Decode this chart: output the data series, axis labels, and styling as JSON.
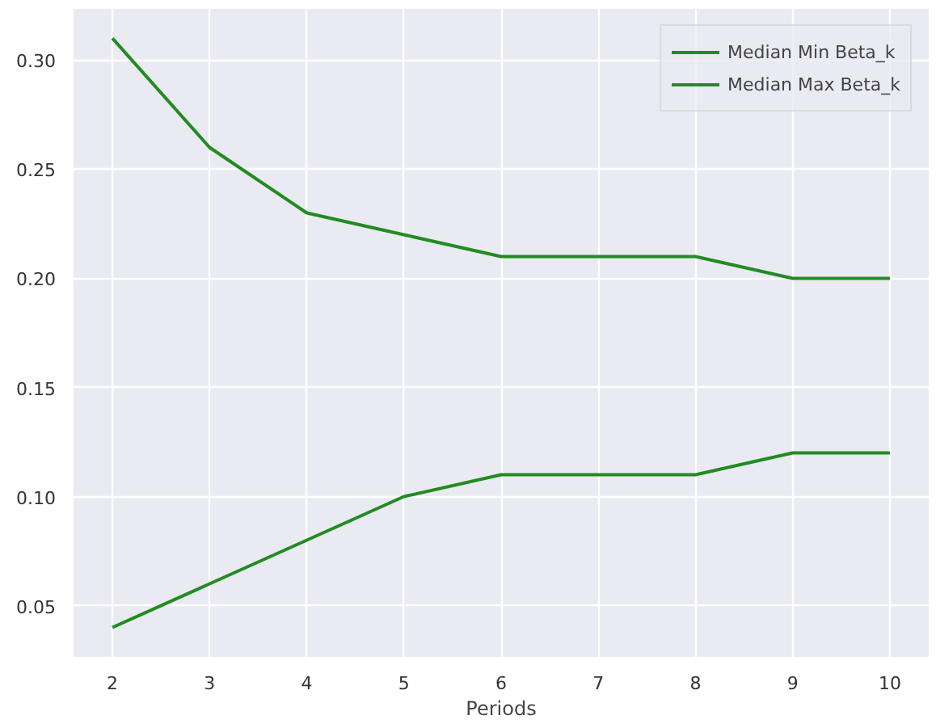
{
  "chart_data": {
    "type": "line",
    "xlabel": "Periods",
    "x": [
      2,
      3,
      4,
      5,
      6,
      7,
      8,
      9,
      10
    ],
    "series": [
      {
        "name": "Median Min Beta_k",
        "color": "#228b22",
        "values": [
          0.04,
          0.06,
          0.08,
          0.1,
          0.11,
          0.11,
          0.11,
          0.12,
          0.12
        ]
      },
      {
        "name": "Median Max Beta_k",
        "color": "#228b22",
        "values": [
          0.31,
          0.26,
          0.23,
          0.22,
          0.21,
          0.21,
          0.21,
          0.2,
          0.2
        ]
      }
    ],
    "xlim": [
      1.6,
      10.4
    ],
    "ylim": [
      0.0265,
      0.3235
    ],
    "xticks": [
      2,
      3,
      4,
      5,
      6,
      7,
      8,
      9,
      10
    ],
    "yticks": [
      {
        "value": 0.05,
        "label": "0.05"
      },
      {
        "value": 0.1,
        "label": "0.10"
      },
      {
        "value": 0.15,
        "label": "0.15"
      },
      {
        "value": 0.2,
        "label": "0.20"
      },
      {
        "value": 0.25,
        "label": "0.25"
      },
      {
        "value": 0.3,
        "label": "0.30"
      }
    ],
    "grid": true,
    "legend": "top right",
    "marker": "none",
    "line_style": "solid"
  }
}
